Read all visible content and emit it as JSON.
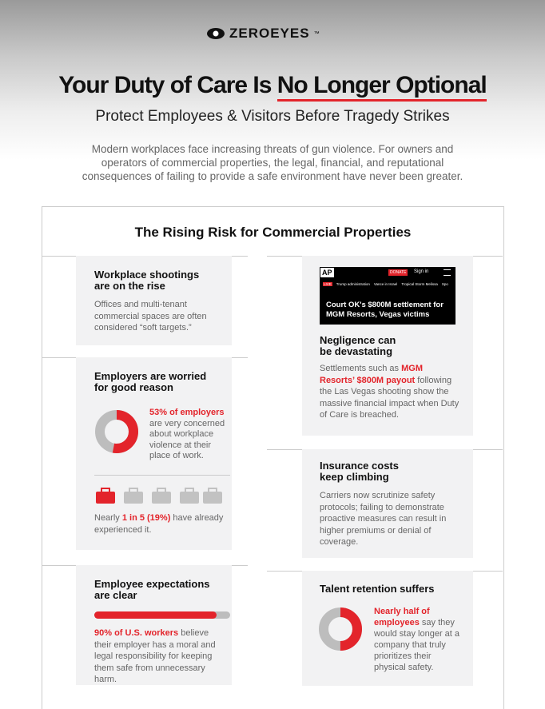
{
  "header": {
    "logo": "ZEROEYES",
    "trademark": "™",
    "title_start": "Your Duty of Care Is ",
    "title_emphasis": "No Longer Optional",
    "subtitle": "Protect Employees & Visitors Before Tragedy Strikes",
    "intro": "Modern workplaces face increasing threats of gun violence. For owners and operators of commercial properties, the legal, financial, and reputational consequences of failing to provide a safe environment have never been greater."
  },
  "section": {
    "title": "The Rising Risk for Commercial Properties"
  },
  "shootings": {
    "heading": "Workplace shootings are on the rise",
    "body": "Offices and multi-tenant commercial spaces are often considered “soft targets.”"
  },
  "worried": {
    "heading": "Employers are worried for good reason",
    "percent": 53,
    "highlight": "53% of employers",
    "body": "are very concerned about workplace violence at their place of work.",
    "stat_prefix": "Nearly ",
    "stat_highlight": "1 in 5 (19%)",
    "stat_suffix": " have already experienced it."
  },
  "expectations": {
    "heading": "Employee expectations are clear",
    "percent": 90,
    "highlight": "90% of U.S. workers",
    "body": " believe their employer has a moral and legal responsibility for keeping them safe from unnecessary harm."
  },
  "negligence": {
    "news": {
      "logo": "AP",
      "donate": "DONATE",
      "signin": "Sign in",
      "live": "LIVE",
      "nav": [
        "Trump administration",
        "Vance in Israel",
        "Tropical Storm Melissa",
        "Spo"
      ],
      "headline": "Court OK's $800M settlement for MGM Resorts, Vegas victims"
    },
    "heading": "Negligence can be devastating",
    "body_start": "Settlements such as ",
    "highlight": "MGM Resorts’ $800M payout",
    "body_end": " following the Las Vegas shooting show the massive financial impact when Duty of Care is breached."
  },
  "insurance": {
    "heading": "Insurance costs keep climbing",
    "body": "Carriers now scrutinize safety protocols; failing to demonstrate proactive measures can result in higher premiums or denial of coverage."
  },
  "talent": {
    "heading": "Talent retention suffers",
    "percent": 50,
    "highlight": "Nearly half of employees",
    "body": " say they would stay longer at a company that truly prioritizes their physical safety."
  }
}
